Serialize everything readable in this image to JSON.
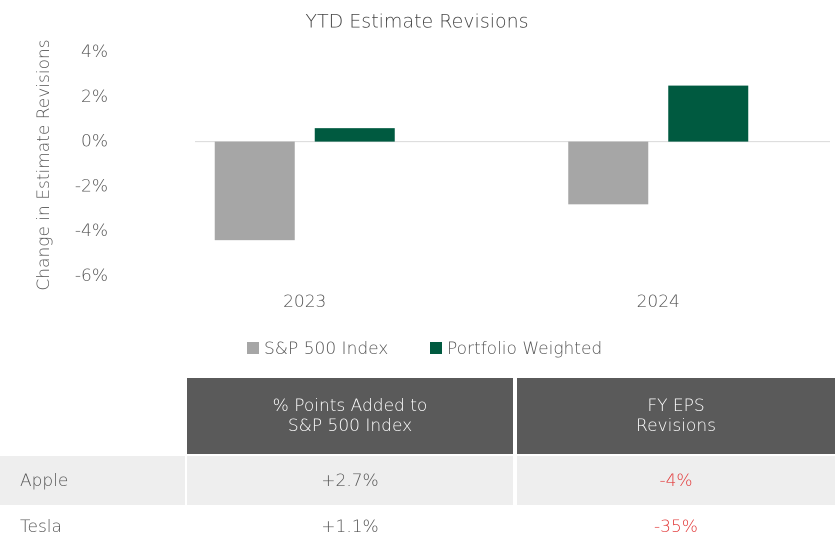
{
  "chart_data": {
    "type": "bar",
    "title": "YTD Estimate Revisions",
    "y_label": "Change in Estimate Revisions",
    "categories": [
      "2023",
      "2024"
    ],
    "series": [
      {
        "name": "S&P 500 Index",
        "color": "#a6a6a6",
        "values": [
          -4.4,
          -2.8
        ]
      },
      {
        "name": "Portfolio Weighted",
        "color": "#005a40",
        "values": [
          0.6,
          2.5
        ]
      }
    ],
    "ylim": [
      -6,
      4
    ],
    "yticks": [
      {
        "value": -6,
        "label": "-6%"
      },
      {
        "value": -4,
        "label": "-4%"
      },
      {
        "value": -2,
        "label": "-2%"
      },
      {
        "value": 0,
        "label": "0%"
      },
      {
        "value": 2,
        "label": "2%"
      },
      {
        "value": 4,
        "label": "4%"
      }
    ],
    "grid": false
  },
  "table": {
    "columns": [
      "% Points Added to S&P 500 Index",
      "FY EPS Revisions"
    ],
    "rows": [
      [
        "Apple",
        "+2.7%",
        "-4%"
      ],
      [
        "Tesla",
        "+1.1%",
        "-35%"
      ]
    ]
  }
}
